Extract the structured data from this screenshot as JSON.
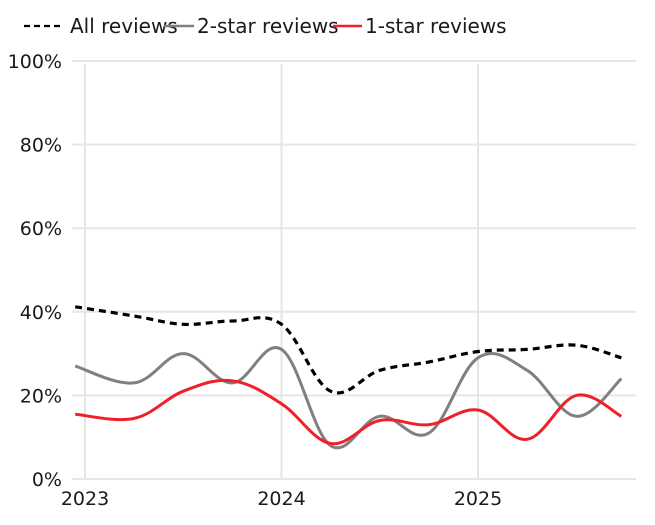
{
  "chart_data": {
    "type": "line",
    "title": "",
    "xlabel": "",
    "ylabel": "",
    "ylim": [
      0,
      100
    ],
    "yticks": [
      "0%",
      "20%",
      "40%",
      "60%",
      "80%",
      "100%"
    ],
    "ytick_values": [
      0,
      20,
      40,
      60,
      80,
      100
    ],
    "xticks": [
      "2023",
      "2024",
      "2025"
    ],
    "xtick_positions": [
      2023.0,
      2024.0,
      2025.0
    ],
    "x": [
      2022.95,
      2023.25,
      2023.5,
      2023.75,
      2024.0,
      2024.25,
      2024.5,
      2024.75,
      2025.0,
      2025.25,
      2025.5,
      2025.73
    ],
    "grid": true,
    "legend_position": "top",
    "series": [
      {
        "name": "All reviews",
        "style": "dotted",
        "color": "#000000",
        "values": [
          41.2,
          39,
          37,
          37.8,
          37,
          21,
          26,
          28,
          30.5,
          31,
          32,
          29
        ]
      },
      {
        "name": "2-star reviews",
        "style": "solid",
        "color": "#808080",
        "values": [
          27,
          23,
          30,
          23,
          31,
          8,
          15,
          11,
          29,
          26,
          15,
          24
        ]
      },
      {
        "name": "1-star reviews",
        "style": "solid",
        "color": "#f0202a",
        "values": [
          15.5,
          14.5,
          21,
          23.5,
          18,
          8.5,
          14,
          13,
          16.5,
          9.5,
          20,
          15
        ]
      }
    ]
  },
  "legend": {
    "items": [
      {
        "label": "All reviews"
      },
      {
        "label": "2-star reviews"
      },
      {
        "label": "1-star reviews"
      }
    ]
  },
  "colors": {
    "grid": "#e6e6e6",
    "text": "#1a1a1a"
  }
}
